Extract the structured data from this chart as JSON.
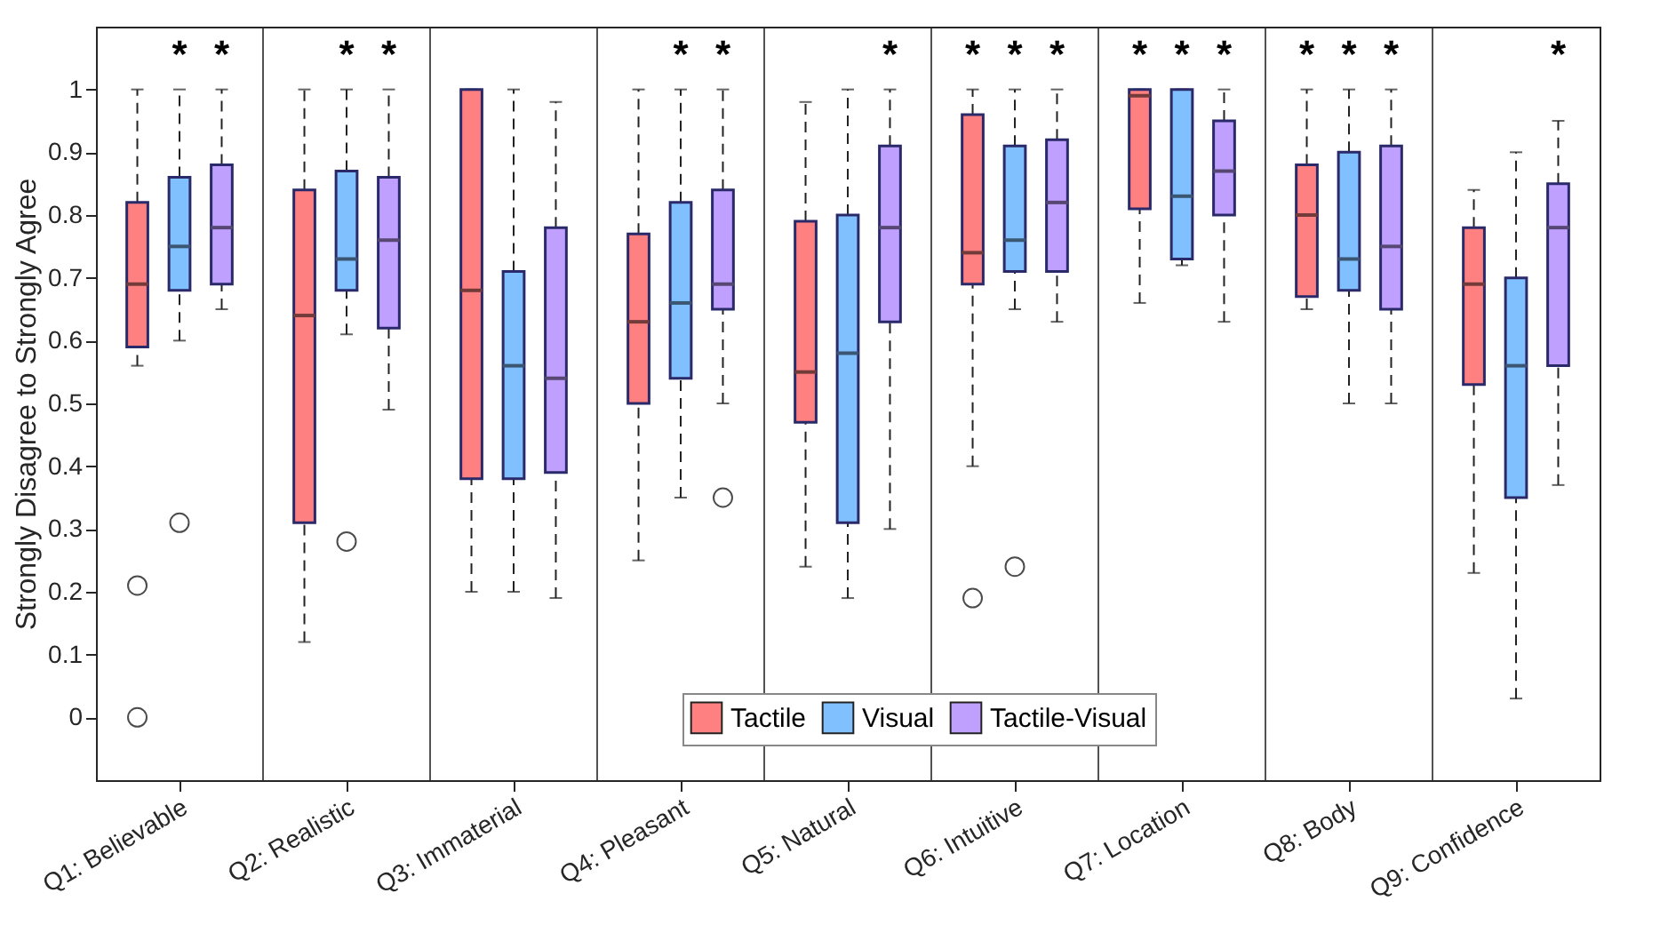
{
  "chart_data": {
    "type": "box",
    "ylabel": "Strongly Disagree to Strongly Agree",
    "categories": [
      "Q1: Believable",
      "Q2: Realistic",
      "Q3: Immaterial",
      "Q4: Pleasant",
      "Q5: Natural",
      "Q6: Intuitive",
      "Q7: Location",
      "Q8: Body",
      "Q9: Confidence"
    ],
    "ylim": [
      -0.1,
      1.1
    ],
    "yticks": [
      0,
      0.1,
      0.2,
      0.3,
      0.4,
      0.5,
      0.6,
      0.7,
      0.8,
      0.9,
      1
    ],
    "grid": "x",
    "legend": "bottom",
    "series": [
      {
        "name": "Tactile",
        "color": "#ff8080",
        "value_labels": [
          null,
          null,
          null,
          null,
          null,
          "*",
          "*",
          "*",
          null
        ],
        "boxes": [
          {
            "low": 0.56,
            "q1": 0.59,
            "median": 0.69,
            "q3": 0.82,
            "high": 1.0,
            "outliers": [
              0.21,
              0
            ]
          },
          {
            "low": 0.12,
            "q1": 0.31,
            "median": 0.64,
            "q3": 0.84,
            "high": 1.0
          },
          {
            "low": 0.2,
            "q1": 0.38,
            "median": 0.68,
            "q3": 1.0,
            "high": 1.0
          },
          {
            "low": 0.25,
            "q1": 0.5,
            "median": 0.63,
            "q3": 0.77,
            "high": 1.0
          },
          {
            "low": 0.24,
            "q1": 0.47,
            "median": 0.55,
            "q3": 0.79,
            "high": 0.98
          },
          {
            "low": 0.4,
            "q1": 0.69,
            "median": 0.74,
            "q3": 0.96,
            "high": 1.0,
            "outliers": [
              0.19
            ]
          },
          {
            "low": 0.66,
            "q1": 0.81,
            "median": 0.99,
            "q3": 1.0,
            "high": 1.0
          },
          {
            "low": 0.65,
            "q1": 0.67,
            "median": 0.8,
            "q3": 0.88,
            "high": 1.0
          },
          {
            "low": 0.23,
            "q1": 0.53,
            "median": 0.69,
            "q3": 0.78,
            "high": 0.84
          }
        ]
      },
      {
        "name": "Visual",
        "color": "#80c0ff",
        "value_labels": [
          "*",
          "*",
          null,
          "*",
          null,
          "*",
          "*",
          "*",
          null
        ],
        "boxes": [
          {
            "low": 0.6,
            "q1": 0.68,
            "median": 0.75,
            "q3": 0.86,
            "high": 1.0,
            "outliers": [
              0.31
            ]
          },
          {
            "low": 0.61,
            "q1": 0.68,
            "median": 0.73,
            "q3": 0.87,
            "high": 1.0,
            "outliers": [
              0.28
            ]
          },
          {
            "low": 0.2,
            "q1": 0.38,
            "median": 0.56,
            "q3": 0.71,
            "high": 1.0
          },
          {
            "low": 0.35,
            "q1": 0.54,
            "median": 0.66,
            "q3": 0.82,
            "high": 1.0
          },
          {
            "low": 0.19,
            "q1": 0.31,
            "median": 0.58,
            "q3": 0.8,
            "high": 1.0
          },
          {
            "low": 0.65,
            "q1": 0.71,
            "median": 0.76,
            "q3": 0.91,
            "high": 1.0,
            "outliers": [
              0.24
            ]
          },
          {
            "low": 0.72,
            "q1": 0.73,
            "median": 0.83,
            "q3": 1.0,
            "high": 1.0
          },
          {
            "low": 0.5,
            "q1": 0.68,
            "median": 0.73,
            "q3": 0.9,
            "high": 1.0
          },
          {
            "low": 0.03,
            "q1": 0.35,
            "median": 0.56,
            "q3": 0.7,
            "high": 0.9
          }
        ]
      },
      {
        "name": "Tactile-Visual",
        "color": "#c0a0ff",
        "value_labels": [
          "*",
          "*",
          null,
          "*",
          "*",
          "*",
          "*",
          "*",
          "*"
        ],
        "boxes": [
          {
            "low": 0.65,
            "q1": 0.69,
            "median": 0.78,
            "q3": 0.88,
            "high": 1.0
          },
          {
            "low": 0.49,
            "q1": 0.62,
            "median": 0.76,
            "q3": 0.86,
            "high": 1.0
          },
          {
            "low": 0.19,
            "q1": 0.39,
            "median": 0.54,
            "q3": 0.78,
            "high": 0.98
          },
          {
            "low": 0.5,
            "q1": 0.65,
            "median": 0.69,
            "q3": 0.84,
            "high": 1.0,
            "outliers": [
              0.35
            ]
          },
          {
            "low": 0.3,
            "q1": 0.63,
            "median": 0.78,
            "q3": 0.91,
            "high": 1.0
          },
          {
            "low": 0.63,
            "q1": 0.71,
            "median": 0.82,
            "q3": 0.92,
            "high": 1.0
          },
          {
            "low": 0.63,
            "q1": 0.8,
            "median": 0.87,
            "q3": 0.95,
            "high": 1.0
          },
          {
            "low": 0.5,
            "q1": 0.65,
            "median": 0.75,
            "q3": 0.91,
            "high": 1.0
          },
          {
            "low": 0.37,
            "q1": 0.56,
            "median": 0.78,
            "q3": 0.85,
            "high": 0.95
          }
        ]
      }
    ]
  }
}
